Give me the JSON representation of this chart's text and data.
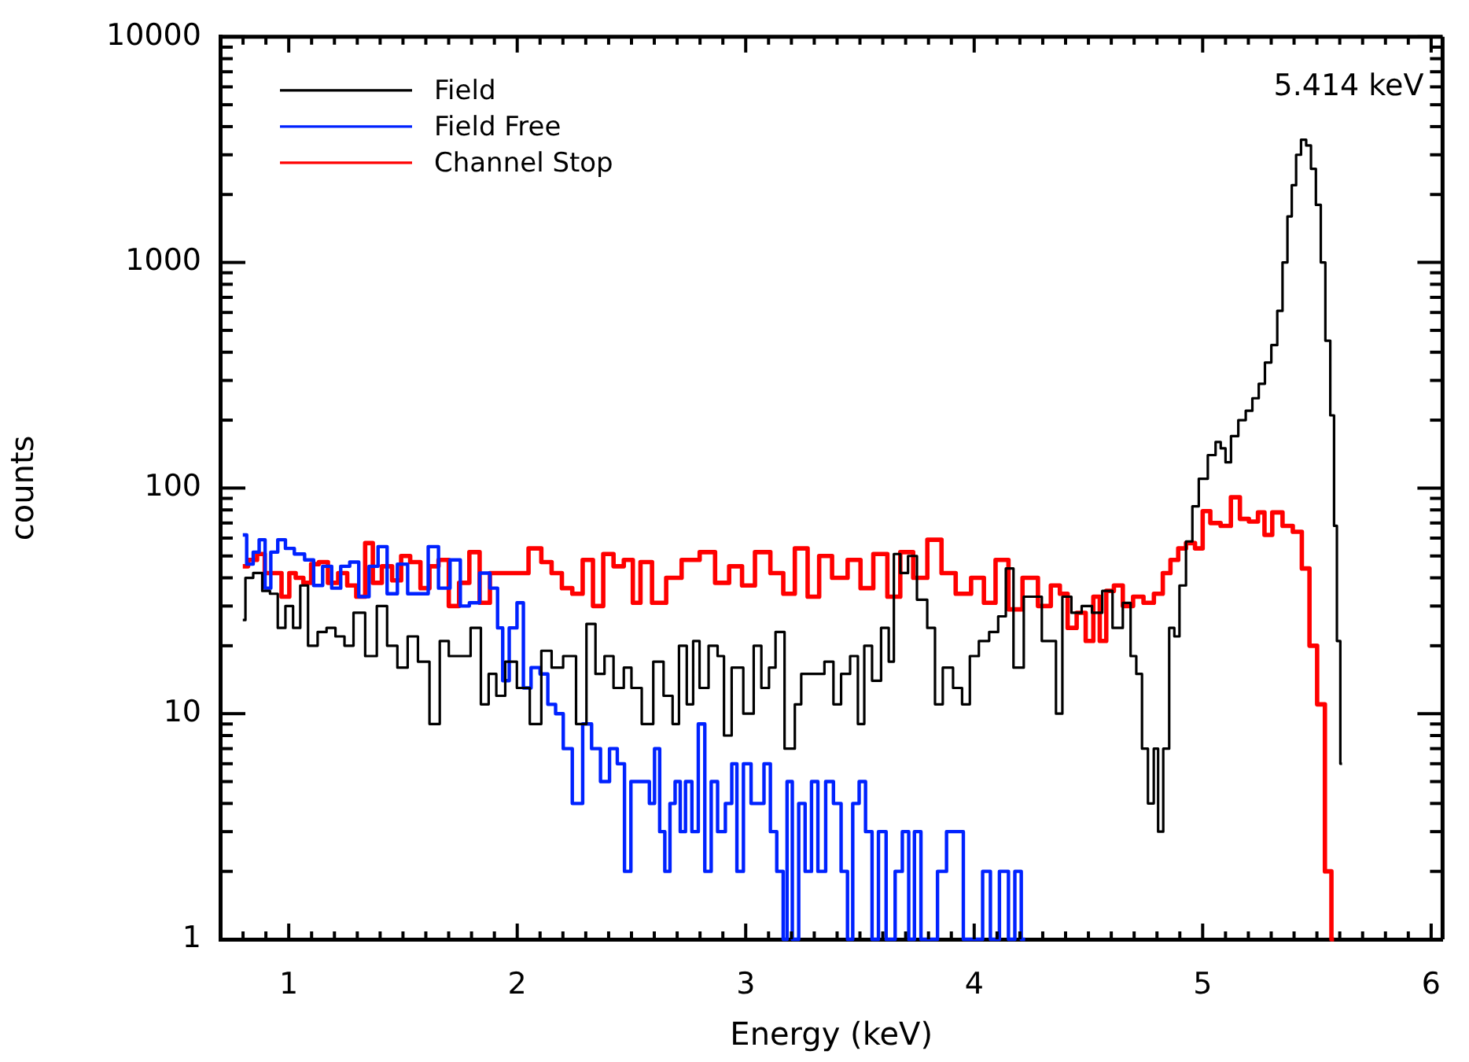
{
  "chart_data": {
    "type": "step",
    "xlabel": "Energy (keV)",
    "ylabel": "counts",
    "log": "y",
    "grid": false,
    "legend": "top left",
    "annotations": [
      "5.414 keV"
    ],
    "xlim": [
      0.7,
      6.05
    ],
    "ylim": [
      1,
      10000
    ],
    "xticks": [
      {
        "value": 0.8,
        "label": null
      },
      {
        "value": 0.9,
        "label": null
      },
      1,
      {
        "value": 1.1,
        "label": null
      },
      {
        "value": 1.2,
        "label": null
      },
      {
        "value": 1.3,
        "label": null
      },
      {
        "value": 1.4,
        "label": null
      },
      {
        "value": 1.5,
        "label": null
      },
      {
        "value": 1.6,
        "label": null
      },
      {
        "value": 1.7,
        "label": null
      },
      {
        "value": 1.8,
        "label": null
      },
      {
        "value": 1.9,
        "label": null
      },
      2,
      {
        "value": 2.1,
        "label": null
      },
      {
        "value": 2.2,
        "label": null
      },
      {
        "value": 2.3,
        "label": null
      },
      {
        "value": 2.4,
        "label": null
      },
      {
        "value": 2.5,
        "label": null
      },
      {
        "value": 2.6,
        "label": null
      },
      {
        "value": 2.7,
        "label": null
      },
      {
        "value": 2.8,
        "label": null
      },
      {
        "value": 2.9,
        "label": null
      },
      3,
      {
        "value": 3.1,
        "label": null
      },
      {
        "value": 3.2,
        "label": null
      },
      {
        "value": 3.3,
        "label": null
      },
      {
        "value": 3.4,
        "label": null
      },
      {
        "value": 3.5,
        "label": null
      },
      {
        "value": 3.6,
        "label": null
      },
      {
        "value": 3.7,
        "label": null
      },
      {
        "value": 3.8,
        "label": null
      },
      {
        "value": 3.9,
        "label": null
      },
      4,
      {
        "value": 4.1,
        "label": null
      },
      {
        "value": 4.2,
        "label": null
      },
      {
        "value": 4.3,
        "label": null
      },
      {
        "value": 4.4,
        "label": null
      },
      {
        "value": 4.5,
        "label": null
      },
      {
        "value": 4.6,
        "label": null
      },
      {
        "value": 4.7,
        "label": null
      },
      {
        "value": 4.8,
        "label": null
      },
      {
        "value": 4.9,
        "label": null
      },
      5,
      {
        "value": 5.1,
        "label": null
      },
      {
        "value": 5.2,
        "label": null
      },
      {
        "value": 5.3,
        "label": null
      },
      {
        "value": 5.4,
        "label": null
      },
      {
        "value": 5.5,
        "label": null
      },
      {
        "value": 5.6,
        "label": null
      },
      {
        "value": 5.7,
        "label": null
      },
      {
        "value": 5.8,
        "label": null
      },
      {
        "value": 5.9,
        "label": null
      },
      6
    ],
    "yticks": [
      1,
      {
        "value": 2,
        "label": null
      },
      {
        "value": 3,
        "label": null
      },
      {
        "value": 4,
        "label": null
      },
      {
        "value": 5,
        "label": null
      },
      {
        "value": 6,
        "label": null
      },
      {
        "value": 7,
        "label": null
      },
      {
        "value": 8,
        "label": null
      },
      {
        "value": 9,
        "label": null
      },
      10,
      {
        "value": 20,
        "label": null
      },
      {
        "value": 30,
        "label": null
      },
      {
        "value": 40,
        "label": null
      },
      {
        "value": 50,
        "label": null
      },
      {
        "value": 60,
        "label": null
      },
      {
        "value": 70,
        "label": null
      },
      {
        "value": 80,
        "label": null
      },
      {
        "value": 90,
        "label": null
      },
      100,
      {
        "value": 200,
        "label": null
      },
      {
        "value": 300,
        "label": null
      },
      {
        "value": 400,
        "label": null
      },
      {
        "value": 500,
        "label": null
      },
      {
        "value": 600,
        "label": null
      },
      {
        "value": 700,
        "label": null
      },
      {
        "value": 800,
        "label": null
      },
      {
        "value": 900,
        "label": null
      },
      1000,
      {
        "value": 2000,
        "label": null
      },
      {
        "value": 3000,
        "label": null
      },
      {
        "value": 4000,
        "label": null
      },
      {
        "value": 5000,
        "label": null
      },
      {
        "value": 6000,
        "label": null
      },
      {
        "value": 7000,
        "label": null
      },
      {
        "value": 8000,
        "label": null
      },
      {
        "value": 9000,
        "label": null
      },
      10000
    ],
    "series": [
      {
        "name": "Field",
        "color": "#000000",
        "x": [
          0.799,
          0.822,
          0.867,
          0.901,
          0.935,
          0.969,
          1.002,
          1.036,
          1.065,
          1.104,
          1.149,
          1.182,
          1.227,
          1.261,
          1.306,
          1.363,
          1.408,
          1.453,
          1.498,
          1.543,
          1.588,
          1.644,
          1.678,
          1.723,
          1.768,
          1.824,
          1.858,
          1.892,
          1.925,
          1.97,
          2.027,
          2.083,
          2.128,
          2.173,
          2.229,
          2.286,
          2.32,
          2.365,
          2.399,
          2.444,
          2.489,
          2.511,
          2.579,
          2.612,
          2.669,
          2.691,
          2.725,
          2.759,
          2.781,
          2.815,
          2.86,
          2.894,
          2.916,
          2.961,
          3.018,
          3.052,
          3.085,
          3.119,
          3.142,
          3.198,
          3.232,
          3.254,
          3.322,
          3.367,
          3.401,
          3.434,
          3.48,
          3.502,
          3.536,
          3.57,
          3.615,
          3.637,
          3.66,
          3.694,
          3.727,
          3.772,
          3.817,
          3.84,
          3.885,
          3.93,
          3.964,
          3.998,
          4.043,
          4.088,
          4.122,
          4.155,
          4.189,
          4.245,
          4.347,
          4.369,
          4.403,
          4.448,
          4.493,
          4.538,
          4.583,
          4.628,
          4.673,
          4.696,
          4.723,
          4.746,
          4.775,
          4.797,
          4.813,
          4.842,
          4.865,
          4.887,
          4.91,
          4.944,
          4.966,
          5.0,
          5.045,
          5.068,
          5.09,
          5.11,
          5.138,
          5.174,
          5.203,
          5.232,
          5.259,
          5.286,
          5.315,
          5.338,
          5.361,
          5.381,
          5.399,
          5.419,
          5.442,
          5.464,
          5.484,
          5.507,
          5.527,
          5.547,
          5.57,
          5.58,
          5.595,
          5.61
        ],
        "values": [
          26,
          40,
          42,
          35,
          34,
          24,
          30,
          24,
          37,
          20,
          23,
          24,
          22,
          20,
          28,
          18,
          30,
          20,
          16,
          22,
          17,
          9,
          21,
          18,
          18,
          24,
          11,
          15,
          12,
          17,
          13,
          9,
          19,
          16,
          18,
          9,
          25,
          15,
          18,
          13,
          16,
          13,
          9,
          17,
          12,
          9,
          20,
          11,
          21,
          13,
          20,
          18,
          8,
          16,
          10,
          20,
          13,
          16,
          23,
          7,
          11,
          15,
          15,
          17,
          11,
          15,
          18,
          9,
          20,
          14,
          24,
          17,
          51,
          42,
          50,
          32,
          24,
          11,
          16,
          13,
          11,
          18,
          21,
          23,
          27,
          44,
          16,
          33,
          21,
          10,
          33,
          28,
          30,
          28,
          35,
          24,
          31,
          18,
          15,
          7,
          4,
          7,
          3,
          7,
          24,
          22,
          37,
          58,
          83,
          110,
          140,
          160,
          150,
          130,
          170,
          200,
          220,
          250,
          290,
          360,
          430,
          610,
          1000,
          1600,
          2200,
          3000,
          3500,
          3300,
          2600,
          1800,
          1000,
          450,
          210,
          68,
          21,
          6
        ]
      },
      {
        "name": "Field Free",
        "color": "#0022ff",
        "x": [
          0.799,
          0.833,
          0.856,
          0.885,
          0.908,
          0.935,
          0.969,
          1.002,
          1.047,
          1.092,
          1.126,
          1.171,
          1.205,
          1.25,
          1.284,
          1.329,
          1.374,
          1.408,
          1.453,
          1.498,
          1.543,
          1.588,
          1.633,
          1.678,
          1.734,
          1.768,
          1.813,
          1.858,
          1.903,
          1.925,
          1.948,
          1.982,
          2.016,
          2.038,
          2.083,
          2.117,
          2.151,
          2.185,
          2.218,
          2.264,
          2.309,
          2.342,
          2.387,
          2.421,
          2.455,
          2.484,
          2.511,
          2.567,
          2.59,
          2.612,
          2.635,
          2.657,
          2.68,
          2.702,
          2.725,
          2.748,
          2.781,
          2.804,
          2.838,
          2.86,
          2.894,
          2.928,
          2.95,
          2.973,
          3.007,
          3.04,
          3.063,
          3.097,
          3.119,
          3.153,
          3.175,
          3.187,
          3.221,
          3.243,
          3.277,
          3.299,
          3.333,
          3.367,
          3.401,
          3.434,
          3.457,
          3.48,
          3.513,
          3.536,
          3.57,
          3.592,
          3.637,
          3.671,
          3.7,
          3.727,
          3.75,
          3.784,
          3.817,
          3.862,
          3.896,
          3.93,
          3.975,
          4.02,
          4.054,
          4.088,
          4.133,
          4.167,
          4.189,
          4.223
        ],
        "values": [
          62,
          46,
          52,
          59,
          36,
          52,
          59,
          54,
          51,
          48,
          37,
          45,
          36,
          45,
          47,
          33,
          45,
          55,
          34,
          46,
          34,
          34,
          55,
          36,
          48,
          30,
          31,
          42,
          36,
          24,
          14,
          24,
          31,
          13,
          16,
          15,
          11,
          10,
          7,
          4,
          9,
          7,
          5,
          7,
          6,
          2,
          5,
          5,
          4,
          7,
          3,
          2,
          4,
          5,
          3,
          5,
          3,
          9,
          2,
          5,
          3,
          4,
          6,
          2,
          6,
          4,
          4,
          6,
          3,
          2,
          1,
          5,
          1,
          4,
          2,
          5,
          2,
          5,
          4,
          2,
          1,
          4,
          5,
          3,
          1,
          3,
          1,
          2,
          3,
          1,
          3,
          1,
          1,
          2,
          3,
          3,
          1,
          1,
          2,
          1,
          2,
          1,
          2,
          1
        ]
      },
      {
        "name": "Channel Stop",
        "color": "#ff0000",
        "x": [
          0.799,
          0.845,
          0.878,
          0.912,
          0.946,
          0.991,
          1.014,
          1.047,
          1.081,
          1.115,
          1.149,
          1.194,
          1.239,
          1.273,
          1.318,
          1.351,
          1.385,
          1.43,
          1.475,
          1.509,
          1.554,
          1.599,
          1.633,
          1.678,
          1.723,
          1.768,
          1.813,
          1.858,
          1.903,
          1.97,
          2.016,
          2.083,
          2.128,
          2.173,
          2.218,
          2.264,
          2.309,
          2.354,
          2.399,
          2.444,
          2.489,
          2.523,
          2.556,
          2.624,
          2.68,
          2.759,
          2.838,
          2.894,
          2.961,
          3.007,
          3.074,
          3.142,
          3.187,
          3.243,
          3.299,
          3.344,
          3.412,
          3.48,
          3.525,
          3.592,
          3.648,
          3.705,
          3.761,
          3.829,
          3.885,
          3.953,
          4.02,
          4.065,
          4.122,
          4.178,
          4.245,
          4.313,
          4.358,
          4.392,
          4.426,
          4.471,
          4.505,
          4.538,
          4.561,
          4.595,
          4.628,
          4.673,
          4.718,
          4.764,
          4.809,
          4.842,
          4.876,
          4.91,
          4.944,
          4.989,
          5.011,
          5.056,
          5.101,
          5.146,
          5.18,
          5.225,
          5.259,
          5.282,
          5.327,
          5.372,
          5.417,
          5.451,
          5.484,
          5.518,
          5.552,
          5.575
        ],
        "values": [
          45,
          48,
          51,
          42,
          42,
          33,
          42,
          40,
          38,
          46,
          47,
          38,
          42,
          37,
          33,
          57,
          38,
          45,
          39,
          50,
          47,
          36,
          45,
          48,
          30,
          38,
          52,
          31,
          42,
          42,
          42,
          54,
          47,
          42,
          36,
          34,
          48,
          30,
          51,
          45,
          48,
          31,
          47,
          31,
          40,
          48,
          52,
          38,
          45,
          37,
          52,
          42,
          34,
          54,
          33,
          50,
          40,
          48,
          36,
          51,
          33,
          52,
          40,
          59,
          42,
          34,
          40,
          31,
          48,
          29,
          40,
          30,
          37,
          34,
          24,
          28,
          21,
          33,
          21,
          35,
          37,
          30,
          33,
          31,
          34,
          42,
          48,
          54,
          57,
          54,
          79,
          70,
          68,
          91,
          73,
          71,
          78,
          62,
          78,
          68,
          64,
          44,
          20,
          11,
          2,
          1
        ]
      }
    ]
  }
}
